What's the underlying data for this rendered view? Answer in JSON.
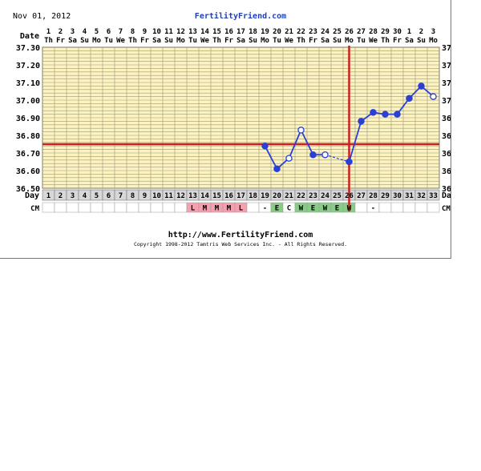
{
  "header": {
    "date": "Nov 01, 2012",
    "site": "FertilityFriend.com"
  },
  "footer": {
    "url": "http://www.FertilityFriend.com",
    "copyright": "Copyright 1998-2012 Tamtris Web Services Inc. - All Rights Reserved."
  },
  "row_labels": {
    "date": "Date",
    "day": "Day",
    "cm": "CM"
  },
  "colors": {
    "plot_bg": "#fdf3c0",
    "grid": "#9a9a78",
    "coverline": "#cc2020",
    "ovulation_line": "#cc2020",
    "temp_line": "#2a3fd6",
    "cm_menses": "#f4a0b0",
    "cm_fertile": "#88cc88",
    "day_row_bg": "#d8d8d8"
  },
  "chart_data": {
    "type": "line",
    "title": "",
    "ylim": [
      36.5,
      37.3
    ],
    "y_ticks": [
      "36.50",
      "36.60",
      "36.70",
      "36.80",
      "36.90",
      "37.00",
      "37.10",
      "37.20",
      "37.30"
    ],
    "dates": [
      "1",
      "2",
      "3",
      "4",
      "5",
      "6",
      "7",
      "8",
      "9",
      "10",
      "11",
      "12",
      "13",
      "14",
      "15",
      "16",
      "17",
      "18",
      "19",
      "20",
      "21",
      "22",
      "23",
      "24",
      "25",
      "26",
      "27",
      "28",
      "29",
      "30",
      "1",
      "2",
      "3"
    ],
    "weekdays": [
      "Th",
      "Fr",
      "Sa",
      "Su",
      "Mo",
      "Tu",
      "We",
      "Th",
      "Fr",
      "Sa",
      "Su",
      "Mo",
      "Tu",
      "We",
      "Th",
      "Fr",
      "Sa",
      "Su",
      "Mo",
      "Tu",
      "We",
      "Th",
      "Fr",
      "Sa",
      "Su",
      "Mo",
      "Tu",
      "We",
      "Th",
      "Fr",
      "Sa",
      "Su",
      "Mo"
    ],
    "cycle_days": [
      "1",
      "2",
      "3",
      "4",
      "5",
      "6",
      "7",
      "8",
      "9",
      "10",
      "11",
      "12",
      "13",
      "14",
      "15",
      "16",
      "17",
      "18",
      "19",
      "20",
      "21",
      "22",
      "23",
      "24",
      "25",
      "26",
      "27",
      "28",
      "29",
      "30",
      "31",
      "32",
      "33"
    ],
    "cm": [
      "",
      "",
      "",
      "",
      "",
      "",
      "",
      "",
      "",
      "",
      "",
      "",
      "L",
      "M",
      "M",
      "M",
      "L",
      "",
      "-",
      "E",
      "C",
      "W",
      "E",
      "W",
      "E",
      "W",
      "",
      "-",
      "",
      "",
      "",
      "",
      ""
    ],
    "coverline": 36.75,
    "ovulation_day": 26,
    "temps": [
      {
        "day": 19,
        "temp": 36.74,
        "open": false
      },
      {
        "day": 20,
        "temp": 36.61,
        "open": false
      },
      {
        "day": 21,
        "temp": 36.67,
        "open": true
      },
      {
        "day": 22,
        "temp": 36.83,
        "open": true
      },
      {
        "day": 23,
        "temp": 36.69,
        "open": false
      },
      {
        "day": 24,
        "temp": 36.69,
        "open": true
      },
      {
        "day": 26,
        "temp": 36.65,
        "open": false
      },
      {
        "day": 27,
        "temp": 36.88,
        "open": false
      },
      {
        "day": 28,
        "temp": 36.93,
        "open": false
      },
      {
        "day": 29,
        "temp": 36.92,
        "open": false
      },
      {
        "day": 30,
        "temp": 36.92,
        "open": false
      },
      {
        "day": 31,
        "temp": 37.01,
        "open": false
      },
      {
        "day": 32,
        "temp": 37.08,
        "open": false
      },
      {
        "day": 33,
        "temp": 37.02,
        "open": true
      }
    ]
  }
}
